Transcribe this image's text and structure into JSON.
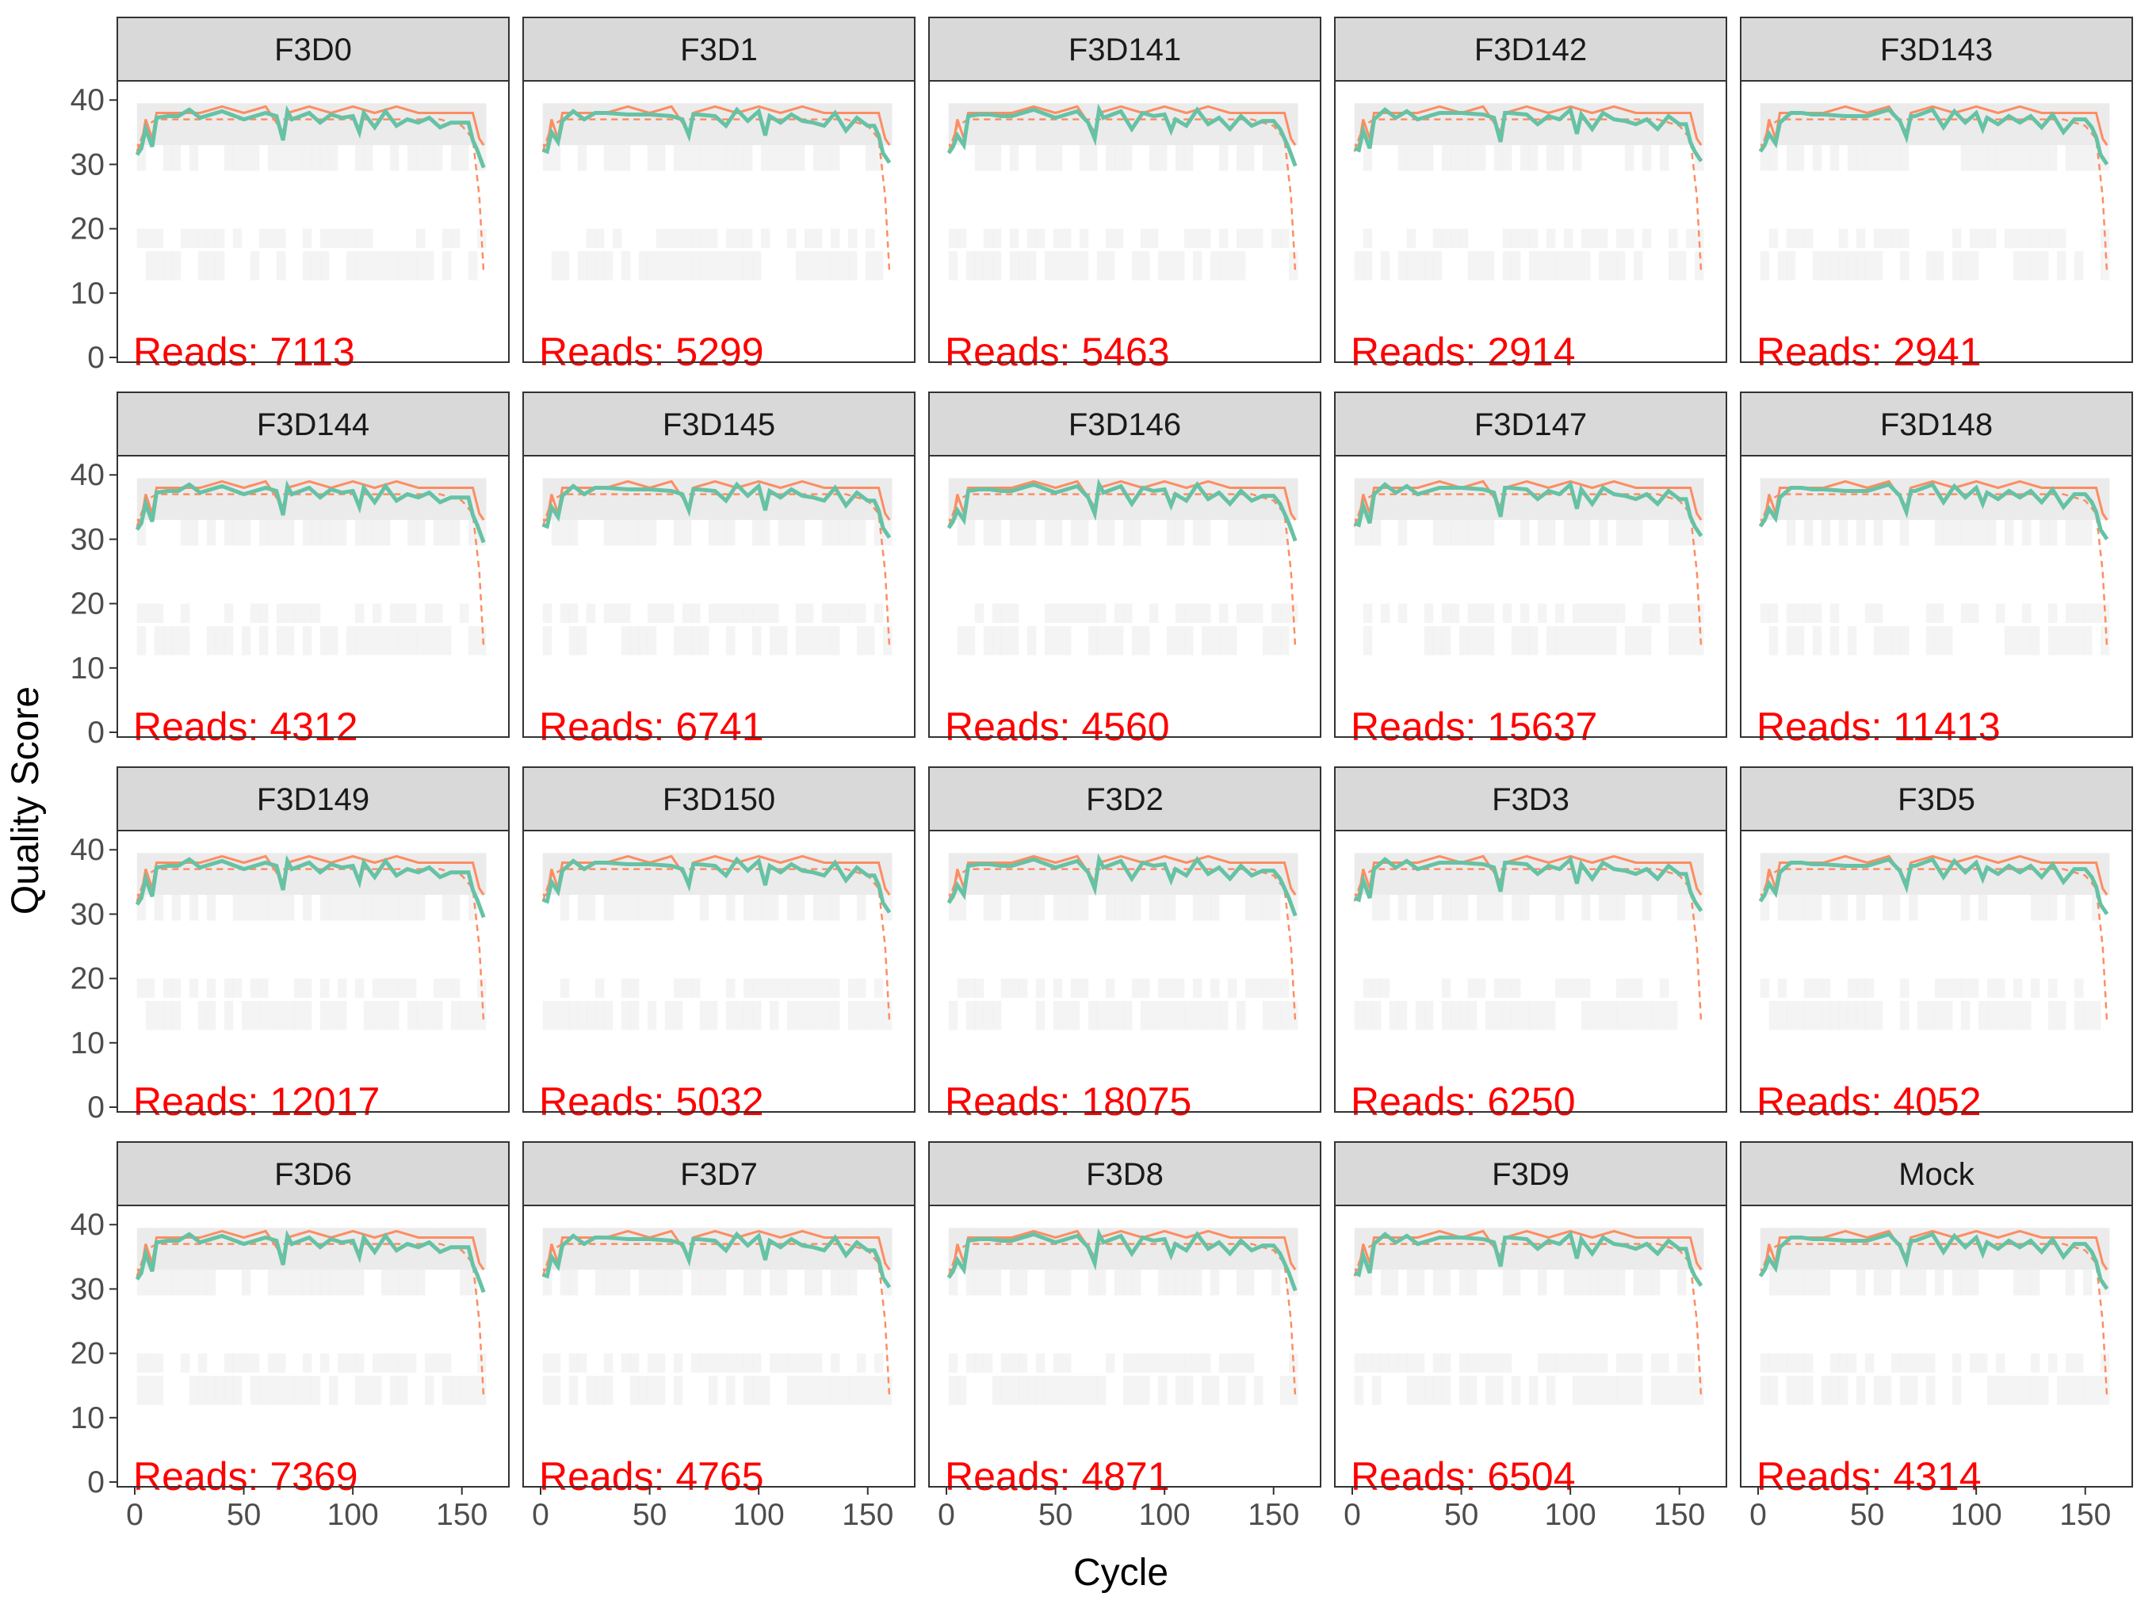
{
  "chart_data": {
    "type": "line",
    "layout": "facet-grid-4x5",
    "xlabel": "Cycle",
    "ylabel": "Quality Score",
    "xlim": [
      0,
      165
    ],
    "ylim": [
      0,
      42
    ],
    "x_ticks": [
      0,
      50,
      100,
      150
    ],
    "y_ticks": [
      0,
      10,
      20,
      30,
      40
    ],
    "grid": false,
    "legend": "none",
    "colors": {
      "mean_line": "#66c2a5",
      "median_line": "#fc8d62",
      "quartile_line": "#fc8d62",
      "heatmap": "#e8e8e8",
      "reads_label": "#ff0000",
      "strip_fill": "#d9d9d9",
      "panel_border": "#333333"
    },
    "reads_prefix": "Reads:",
    "panels": [
      {
        "label": "F3D0",
        "reads": 7113
      },
      {
        "label": "F3D1",
        "reads": 5299
      },
      {
        "label": "F3D141",
        "reads": 5463
      },
      {
        "label": "F3D142",
        "reads": 2914
      },
      {
        "label": "F3D143",
        "reads": 2941
      },
      {
        "label": "F3D144",
        "reads": 4312
      },
      {
        "label": "F3D145",
        "reads": 6741
      },
      {
        "label": "F3D146",
        "reads": 4560
      },
      {
        "label": "F3D147",
        "reads": 15637
      },
      {
        "label": "F3D148",
        "reads": 11413
      },
      {
        "label": "F3D149",
        "reads": 12017
      },
      {
        "label": "F3D150",
        "reads": 5032
      },
      {
        "label": "F3D2",
        "reads": 18075
      },
      {
        "label": "F3D3",
        "reads": 6250
      },
      {
        "label": "F3D5",
        "reads": 4052
      },
      {
        "label": "F3D6",
        "reads": 7369
      },
      {
        "label": "F3D7",
        "reads": 4765
      },
      {
        "label": "F3D8",
        "reads": 4871
      },
      {
        "label": "F3D9",
        "reads": 6504
      },
      {
        "label": "Mock",
        "reads": 4314
      }
    ],
    "mean_quality_profile": {
      "cycle": [
        1,
        3,
        5,
        8,
        10,
        15,
        20,
        25,
        30,
        40,
        50,
        60,
        65,
        68,
        70,
        72,
        80,
        85,
        90,
        95,
        100,
        103,
        105,
        110,
        115,
        120,
        125,
        130,
        135,
        140,
        145,
        150,
        153,
        155,
        157,
        160
      ],
      "quality": [
        32,
        32.5,
        35,
        33,
        37,
        38,
        37.5,
        38,
        37.5,
        38,
        37.5,
        38,
        37,
        34,
        38,
        37.5,
        38,
        36,
        38,
        37,
        38,
        35,
        37.5,
        36,
        38,
        36.5,
        37,
        36,
        37.5,
        35.5,
        37,
        36.5,
        36,
        34,
        32,
        30
      ]
    },
    "median_quality_profile": {
      "cycle": [
        1,
        3,
        5,
        8,
        10,
        15,
        20,
        30,
        40,
        50,
        60,
        68,
        70,
        80,
        90,
        100,
        110,
        120,
        130,
        140,
        150,
        155,
        158,
        160
      ],
      "quality": [
        33,
        33,
        37,
        34,
        38,
        38,
        38,
        38,
        39,
        38,
        39,
        35,
        38,
        39,
        38,
        39,
        38,
        39,
        38,
        38,
        38,
        38,
        34,
        33
      ]
    },
    "quartile_profile": {
      "cycle": [
        1,
        5,
        10,
        20,
        40,
        60,
        80,
        100,
        120,
        140,
        150,
        155,
        158,
        160
      ],
      "quality": [
        32,
        36,
        37,
        37,
        37,
        37,
        37,
        37,
        37,
        37,
        36,
        34,
        25,
        13
      ]
    }
  }
}
